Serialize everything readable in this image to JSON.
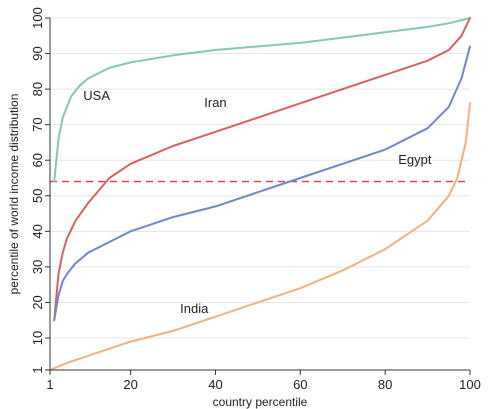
{
  "chart_data": {
    "type": "line",
    "xlabel": "country percentile",
    "ylabel": "percentile of world income distribution",
    "xlim": [
      1,
      100
    ],
    "ylim": [
      1,
      100
    ],
    "x_ticks": [
      1,
      20,
      40,
      60,
      80,
      100
    ],
    "y_ticks": [
      1,
      10,
      20,
      30,
      40,
      50,
      60,
      70,
      80,
      90,
      100
    ],
    "grid": "horizontal",
    "reference_line": {
      "y": 54,
      "style": "dashed",
      "color": "#e0434a"
    },
    "series": [
      {
        "name": "USA",
        "color": "#86c9a8",
        "x": [
          2,
          3,
          4,
          6,
          8,
          10,
          15,
          20,
          25,
          30,
          40,
          50,
          60,
          70,
          80,
          90,
          95,
          100
        ],
        "y": [
          54,
          66,
          72,
          78,
          81,
          83,
          86,
          87.5,
          88.5,
          89.5,
          91,
          92,
          93,
          94.5,
          96,
          97.5,
          98.5,
          100
        ]
      },
      {
        "name": "Iran",
        "color": "#d9625c",
        "x": [
          2,
          3,
          4,
          5,
          7,
          10,
          15,
          20,
          25,
          30,
          40,
          50,
          60,
          70,
          80,
          90,
          95,
          98,
          100
        ],
        "y": [
          15,
          28,
          34,
          38,
          43,
          48,
          55,
          59,
          61.5,
          64,
          68,
          72,
          76,
          80,
          84,
          88,
          91,
          95,
          100
        ]
      },
      {
        "name": "Egypt",
        "color": "#6e87cf",
        "x": [
          2,
          3,
          4,
          5,
          7,
          10,
          15,
          20,
          25,
          30,
          40,
          50,
          60,
          70,
          80,
          90,
          95,
          98,
          100
        ],
        "y": [
          15,
          22,
          26,
          28,
          31,
          34,
          37,
          40,
          42,
          44,
          47,
          51,
          55,
          59,
          63,
          69,
          75,
          83,
          92
        ]
      },
      {
        "name": "India",
        "color": "#f4b07e",
        "x": [
          1,
          5,
          10,
          20,
          30,
          40,
          50,
          60,
          70,
          80,
          85,
          90,
          95,
          97,
          99,
          100
        ],
        "y": [
          1,
          3,
          5,
          9,
          12,
          16,
          20,
          24,
          29,
          35,
          39,
          43,
          50,
          55,
          65,
          76
        ]
      }
    ],
    "series_labels": [
      {
        "text": "USA",
        "x": 12,
        "y": 77
      },
      {
        "text": "Iran",
        "x": 40,
        "y": 75
      },
      {
        "text": "Egypt",
        "x": 87,
        "y": 59
      },
      {
        "text": "India",
        "x": 35,
        "y": 17
      }
    ]
  }
}
